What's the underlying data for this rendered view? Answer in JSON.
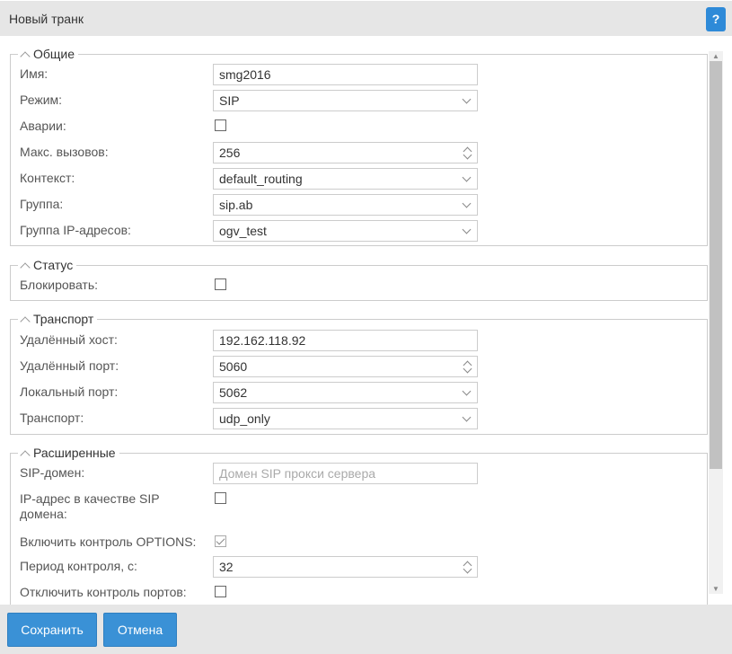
{
  "dialog": {
    "title": "Новый транк",
    "help_label": "?"
  },
  "general": {
    "legend": "Общие",
    "name_label": "Имя:",
    "name_value": "smg2016",
    "mode_label": "Режим:",
    "mode_value": "SIP",
    "alarms_label": "Аварии:",
    "alarms_checked": false,
    "max_calls_label": "Макс. вызовов:",
    "max_calls_value": "256",
    "context_label": "Контекст:",
    "context_value": "default_routing",
    "group_label": "Группа:",
    "group_value": "sip.ab",
    "ip_group_label": "Группа IP-адресов:",
    "ip_group_value": "ogv_test"
  },
  "status": {
    "legend": "Статус",
    "block_label": "Блокировать:",
    "block_checked": false
  },
  "transport": {
    "legend": "Транспорт",
    "remote_host_label": "Удалённый хост:",
    "remote_host_value": "192.162.118.92",
    "remote_port_label": "Удалённый порт:",
    "remote_port_value": "5060",
    "local_port_label": "Локальный порт:",
    "local_port_value": "5062",
    "transport_label": "Транспорт:",
    "transport_value": "udp_only"
  },
  "advanced": {
    "legend": "Расширенные",
    "sip_domain_label": "SIP-домен:",
    "sip_domain_placeholder": "Домен SIP прокси сервера",
    "ip_as_domain_label": "IP-адрес в качестве SIP домена:",
    "ip_as_domain_checked": false,
    "options_label": "Включить контроль OPTIONS:",
    "options_checked": true,
    "period_label": "Период контроля, с:",
    "period_value": "32",
    "disable_ports_label": "Отключить контроль портов:",
    "disable_ports_checked": false
  },
  "footer": {
    "save_label": "Сохранить",
    "cancel_label": "Отмена"
  },
  "colors": {
    "accent": "#3a91d6",
    "header_bg": "#e6e6e6"
  }
}
